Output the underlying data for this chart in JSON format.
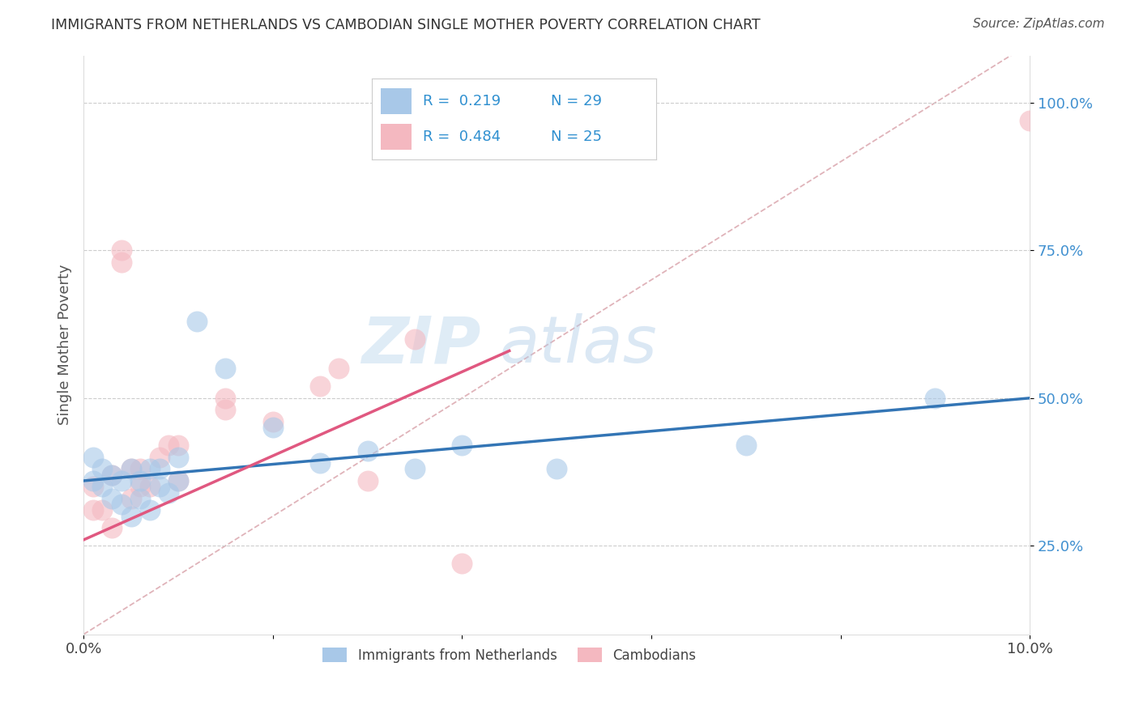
{
  "title": "IMMIGRANTS FROM NETHERLANDS VS CAMBODIAN SINGLE MOTHER POVERTY CORRELATION CHART",
  "source_text": "Source: ZipAtlas.com",
  "ylabel": "Single Mother Poverty",
  "xlim": [
    0.0,
    0.1
  ],
  "ylim": [
    0.1,
    1.08
  ],
  "xticks": [
    0.0,
    0.02,
    0.04,
    0.06,
    0.08,
    0.1
  ],
  "xticklabels": [
    "0.0%",
    "",
    "",
    "",
    "",
    "10.0%"
  ],
  "yticks": [
    0.25,
    0.5,
    0.75,
    1.0
  ],
  "yticklabels": [
    "25.0%",
    "50.0%",
    "75.0%",
    "100.0%"
  ],
  "blue_R": 0.219,
  "blue_N": 29,
  "pink_R": 0.484,
  "pink_N": 25,
  "legend_label_blue": "Immigrants from Netherlands",
  "legend_label_pink": "Cambodians",
  "blue_color": "#a8c8e8",
  "pink_color": "#f4b8c0",
  "blue_line_color": "#3375b5",
  "pink_line_color": "#e05880",
  "ref_line_color": "#d8a0a8",
  "watermark_color": "#d5e8f5",
  "background_color": "#ffffff",
  "blue_x": [
    0.001,
    0.001,
    0.002,
    0.002,
    0.003,
    0.003,
    0.004,
    0.004,
    0.005,
    0.005,
    0.006,
    0.006,
    0.007,
    0.007,
    0.008,
    0.008,
    0.009,
    0.01,
    0.01,
    0.012,
    0.015,
    0.02,
    0.025,
    0.03,
    0.035,
    0.04,
    0.05,
    0.07,
    0.09
  ],
  "blue_y": [
    0.36,
    0.4,
    0.35,
    0.38,
    0.33,
    0.37,
    0.32,
    0.36,
    0.3,
    0.38,
    0.33,
    0.36,
    0.31,
    0.38,
    0.35,
    0.38,
    0.34,
    0.36,
    0.4,
    0.63,
    0.55,
    0.45,
    0.39,
    0.41,
    0.38,
    0.42,
    0.38,
    0.42,
    0.5
  ],
  "pink_x": [
    0.001,
    0.001,
    0.002,
    0.003,
    0.003,
    0.004,
    0.004,
    0.005,
    0.005,
    0.006,
    0.006,
    0.007,
    0.008,
    0.009,
    0.01,
    0.01,
    0.015,
    0.015,
    0.02,
    0.025,
    0.027,
    0.03,
    0.035,
    0.04,
    0.1
  ],
  "pink_y": [
    0.31,
    0.35,
    0.31,
    0.28,
    0.37,
    0.75,
    0.73,
    0.33,
    0.38,
    0.35,
    0.38,
    0.35,
    0.4,
    0.42,
    0.36,
    0.42,
    0.48,
    0.5,
    0.46,
    0.52,
    0.55,
    0.36,
    0.6,
    0.22,
    0.97
  ],
  "blue_trend_x": [
    0.0,
    0.1
  ],
  "blue_trend_y": [
    0.36,
    0.5
  ],
  "pink_trend_x": [
    0.0,
    0.045
  ],
  "pink_trend_y": [
    0.26,
    0.58
  ]
}
